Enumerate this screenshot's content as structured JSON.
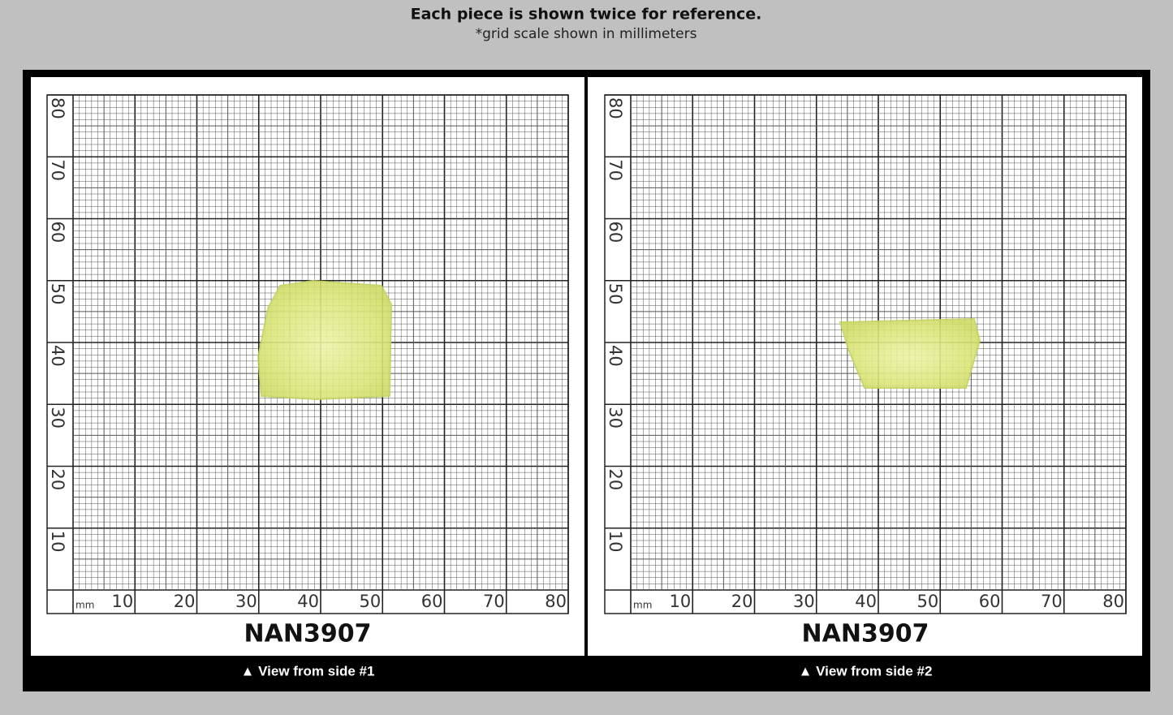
{
  "header": {
    "title": "Each piece is shown twice for reference.",
    "subtitle": "*grid scale shown in millimeters"
  },
  "panels": [
    {
      "unit": "mm",
      "x_labels": [
        10,
        20,
        30,
        40,
        50,
        60,
        70,
        80
      ],
      "y_labels": [
        10,
        20,
        30,
        40,
        50,
        60,
        70,
        80
      ],
      "code": "NAN3907",
      "caption": "▲ View from side #1"
    },
    {
      "unit": "mm",
      "x_labels": [
        10,
        20,
        30,
        40,
        50,
        60,
        70,
        80
      ],
      "y_labels": [
        10,
        20,
        30,
        40,
        50,
        60,
        70,
        80
      ],
      "code": "NAN3907",
      "caption": "▲ View from side #2"
    }
  ]
}
